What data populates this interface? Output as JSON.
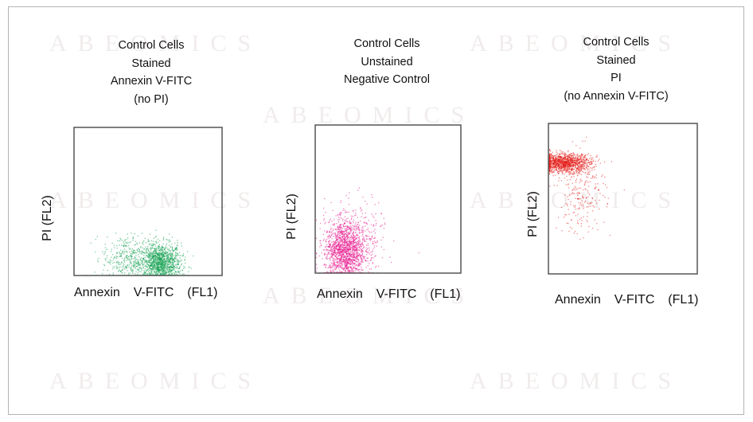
{
  "watermark": "ABEOMICS",
  "chart_data": [
    {
      "type": "scatter",
      "title": [
        "Control Cells",
        "Stained",
        "Annexin V-FITC",
        "(no PI)"
      ],
      "xlabel": "Annexin  V-FITC  (FL1)",
      "ylabel": "PI (FL2)",
      "xlim": [
        0,
        100
      ],
      "ylim": [
        0,
        100
      ],
      "color": "#12a050",
      "clusters": [
        {
          "cx": 58,
          "cy": 8,
          "sx": 7,
          "sy": 7,
          "n": 1400
        },
        {
          "cx": 35,
          "cy": 12,
          "sx": 8,
          "sy": 8,
          "n": 350
        }
      ]
    },
    {
      "type": "scatter",
      "title": [
        "Control Cells",
        "Unstained",
        "Negative Control"
      ],
      "xlabel": "Annexin  V-FITC  (FL1)",
      "ylabel": "PI (FL2)",
      "xlim": [
        0,
        100
      ],
      "ylim": [
        0,
        100
      ],
      "color": "#e8158c",
      "clusters": [
        {
          "cx": 20,
          "cy": 15,
          "sx": 7,
          "sy": 10,
          "n": 1500
        },
        {
          "cx": 28,
          "cy": 25,
          "sx": 10,
          "sy": 12,
          "n": 300
        }
      ]
    },
    {
      "type": "scatter",
      "title": [
        "Control Cells",
        "Stained",
        "PI",
        "(no Annexin V-FITC)"
      ],
      "xlabel": "Annexin  V-FITC  (FL1)",
      "ylabel": "PI (FL2)",
      "xlim": [
        0,
        100
      ],
      "ylim": [
        0,
        100
      ],
      "color": "#e3201b",
      "clusters": [
        {
          "cx": 10,
          "cy": 74,
          "sx": 9,
          "sy": 3,
          "n": 1300
        },
        {
          "cx": 22,
          "cy": 55,
          "sx": 8,
          "sy": 14,
          "n": 250
        }
      ]
    }
  ]
}
